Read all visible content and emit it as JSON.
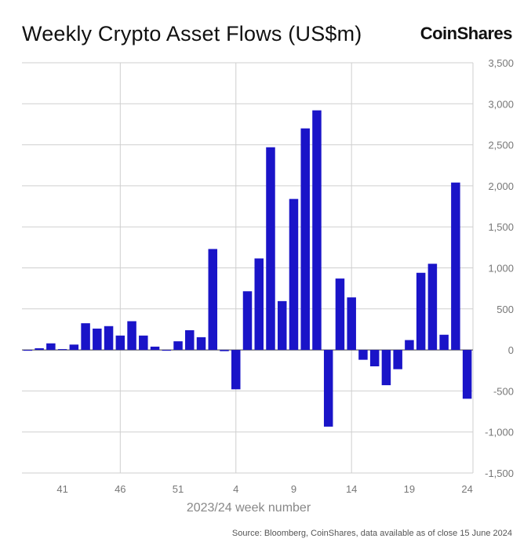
{
  "header": {
    "title": "Weekly Crypto Asset Flows (US$m)",
    "brand": "CoinShares"
  },
  "footer": {
    "source": "Source: Bloomberg, CoinShares, data available as of close 15 June 2024"
  },
  "colors": {
    "bar": "#1a14c8",
    "grid": "#cfcfcf",
    "axis_text": "#777777"
  },
  "chart_data": {
    "type": "bar",
    "title": "Weekly Crypto Asset Flows (US$m)",
    "xlabel": "2023/24 week number",
    "ylabel": "",
    "ylim": [
      -1500,
      3500
    ],
    "yticks": [
      3500,
      3000,
      2500,
      2000,
      1500,
      1000,
      500,
      0,
      -500,
      -1000,
      -1500
    ],
    "ytick_labels": [
      "3,500",
      "3,000",
      "2,500",
      "2,000",
      "1,500",
      "1,000",
      "500",
      "0",
      "-500",
      "-1,000",
      "-1,500"
    ],
    "grid": true,
    "categories": [
      "38",
      "39",
      "40",
      "41",
      "42",
      "43",
      "44",
      "45",
      "46",
      "47",
      "48",
      "49",
      "50",
      "51",
      "52",
      "1",
      "2",
      "3",
      "4",
      "5",
      "6",
      "7",
      "8",
      "9",
      "10",
      "11",
      "12",
      "13",
      "14",
      "15",
      "16",
      "17",
      "18",
      "19",
      "20",
      "21",
      "22",
      "23",
      "24"
    ],
    "xtick_labels": [
      "41",
      "46",
      "51",
      "4",
      "9",
      "14",
      "19",
      "24"
    ],
    "xgrid_labels": [
      "46",
      "4",
      "14"
    ],
    "values": [
      -10,
      20,
      80,
      10,
      65,
      325,
      260,
      290,
      175,
      350,
      175,
      40,
      -10,
      105,
      240,
      155,
      1230,
      -15,
      -480,
      715,
      1115,
      2470,
      595,
      1840,
      2700,
      2920,
      -935,
      870,
      640,
      -120,
      -200,
      -430,
      -235,
      120,
      940,
      1050,
      185,
      2040,
      -595
    ]
  }
}
